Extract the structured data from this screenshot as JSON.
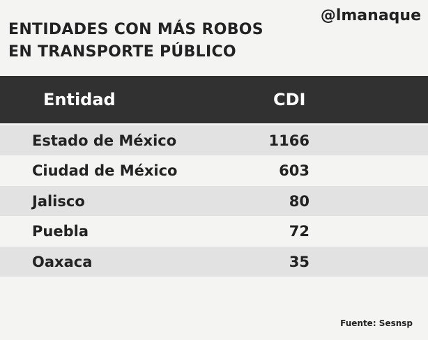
{
  "header": {
    "title_lines": [
      "ENTIDADES CON MÁS ROBOS",
      "EN TRANSPORTE PÚBLICO"
    ],
    "brand": "@lmanaque"
  },
  "table": {
    "columns": [
      "Entidad",
      "CDI"
    ],
    "rows": [
      [
        "Estado de México",
        "1166"
      ],
      [
        "Ciudad de México",
        "603"
      ],
      [
        "Jalisco",
        "80"
      ],
      [
        "Puebla",
        "72"
      ],
      [
        "Oaxaca",
        "35"
      ]
    ]
  },
  "footer": {
    "source": "Fuente: Sesnsp"
  }
}
